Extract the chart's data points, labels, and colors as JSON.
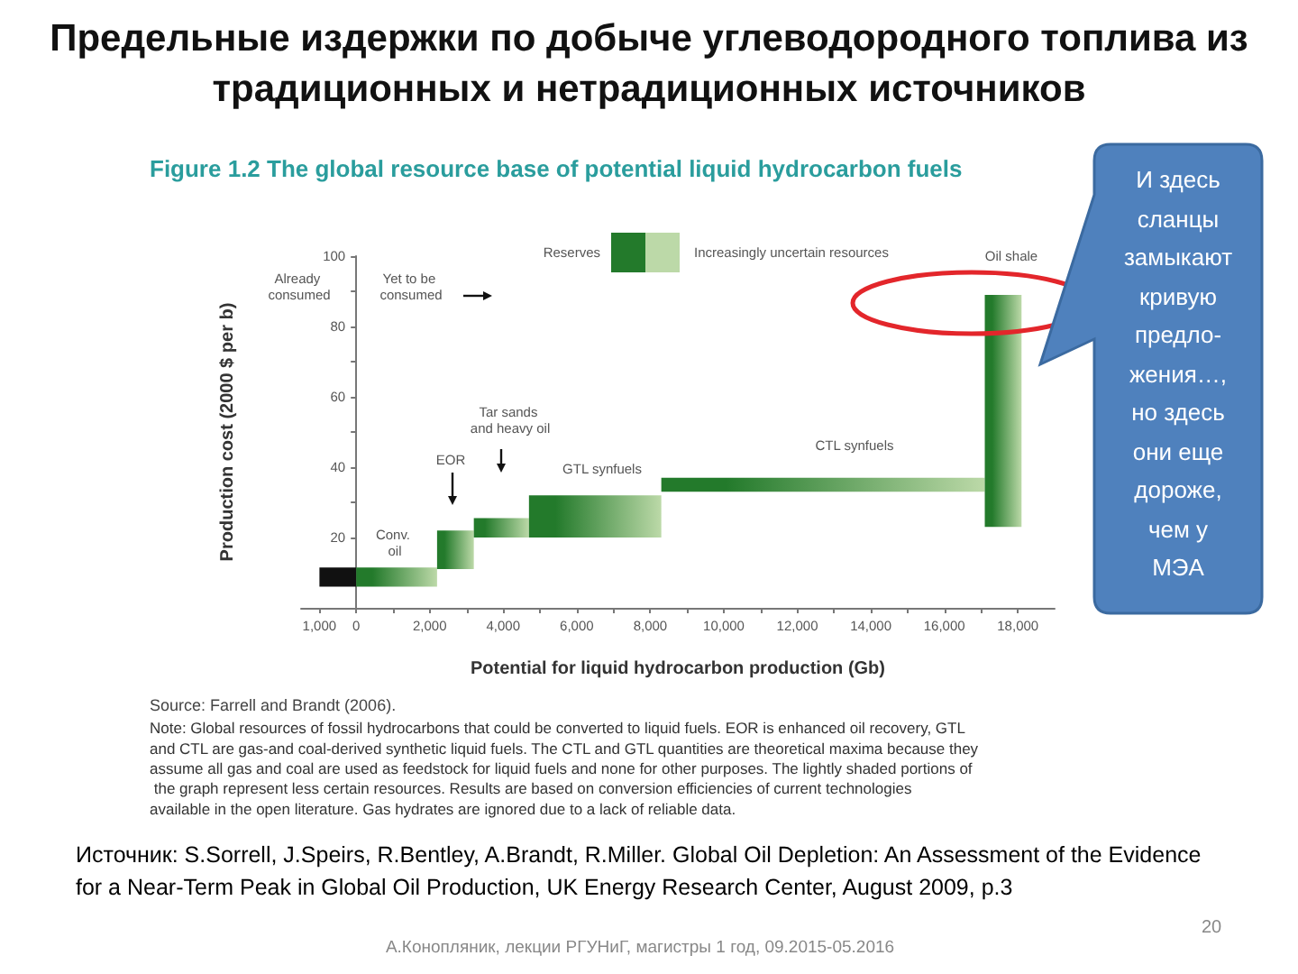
{
  "chart_data": {
    "type": "histogram",
    "title": "Предельные издержки по добыче углеводородного топлива из традиционных и нетрадиционных источников",
    "subtitle": "Figure 1.2 The global resource base of potential liquid hydrocarbon fuels",
    "xlabel": "Potential for liquid hydrocarbon production (Gb)",
    "ylabel": "Production cost (2000 $ per b)",
    "bins": [
      -1000,
      0,
      2200,
      3200,
      4700,
      8300,
      17100,
      18100
    ],
    "base": [
      6,
      6,
      11,
      20,
      20,
      33,
      23
    ],
    "values": [
      5.5,
      5.5,
      11,
      5.5,
      12,
      4,
      66
    ],
    "colors": [
      "#111111",
      "#237a2b",
      "#237a2b",
      "#237a2b",
      "#237a2b",
      "#237a2b",
      "#237a2b"
    ],
    "xlim": [
      -1500,
      19000
    ],
    "xticks": [
      {
        "value": -1000,
        "label": "1,000"
      },
      0,
      {
        "value": 1000,
        "label": null
      },
      {
        "value": 2000,
        "label": "2,000"
      },
      {
        "value": 3000,
        "label": null
      },
      {
        "value": 4000,
        "label": "4,000"
      },
      {
        "value": 5000,
        "label": null
      },
      {
        "value": 6000,
        "label": "6,000"
      },
      {
        "value": 7000,
        "label": null
      },
      {
        "value": 8000,
        "label": "8,000"
      },
      {
        "value": 9000,
        "label": null
      },
      {
        "value": 10000,
        "label": "10,000"
      },
      {
        "value": 11000,
        "label": null
      },
      {
        "value": 12000,
        "label": "12,000"
      },
      {
        "value": 13000,
        "label": null
      },
      {
        "value": 14000,
        "label": "14,000"
      },
      {
        "value": 15000,
        "label": null
      },
      {
        "value": 16000,
        "label": "16,000"
      },
      {
        "value": 17000,
        "label": null
      },
      {
        "value": 18000,
        "label": "18,000"
      }
    ],
    "ylim": [
      0,
      100
    ],
    "yticks": [
      {
        "value": 10,
        "label": null
      },
      20,
      {
        "value": 30,
        "label": null
      },
      40,
      {
        "value": 50,
        "label": null
      },
      60,
      {
        "value": 70,
        "label": null
      },
      80,
      {
        "value": 90,
        "label": null
      },
      100
    ],
    "annotations": [
      "Already consumed",
      "Yet to be consumed",
      "Conv. oil",
      "EOR",
      "Tar sands and heavy oil",
      "GTL synfuels",
      "CTL synfuels",
      "Oil shale",
      "Reserves",
      "Increasingly uncertain resources",
      "Source: Farrell and Brandt (2006).",
      "Note: Global resources of fossil hydrocarbons that could be converted to liquid fuels. EOR is enhanced oil recovery, GTL and CTL are gas-and coal-derived synthetic liquid fuels. The CTL and GTL quantities are theoretical maxima because they assume all gas and coal are used as feedstock for liquid fuels and none for other purposes. The lightly shaded portions of the graph represent less certain resources. Results are based on conversion efficiencies of current technologies available in the open literature. Gas hydrates are ignored due to a lack of reliable data.",
      "И здесь сланцы замыкают кривую предло-жения…, но здесь они еще дороже, чем у МЭА",
      "Источник: S.Sorrell, J.Speirs, R.Bentley, A.Brandt, R.Miller. Global Oil Depletion: An Assessment of the Evidence for a Near-Term Peak in Global Oil Production, UK Energy Research Center, August 2009, p.3",
      "А.Конопляник, лекции РГУНиГ, магистры 1 год, 09.2015-05.2016",
      "20"
    ]
  }
}
